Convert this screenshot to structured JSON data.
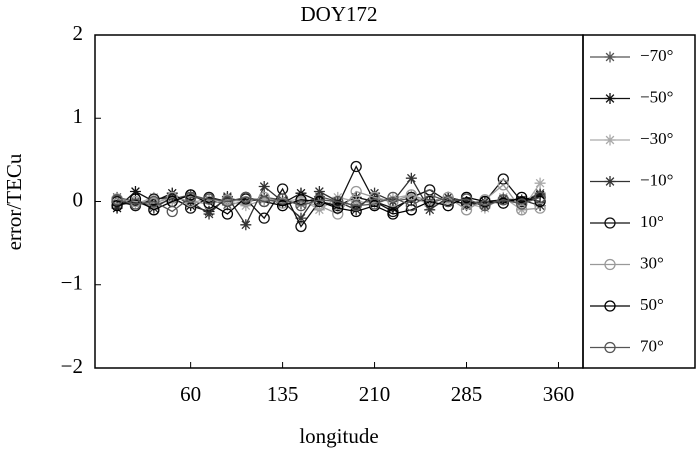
{
  "chart_data": {
    "type": "line",
    "title": "DOY172",
    "x_label": "longitude",
    "y_label": "error/TECu",
    "xlim": [
      -18,
      380
    ],
    "xticks": [
      60,
      135,
      210,
      285,
      360
    ],
    "ylim": [
      -2,
      2
    ],
    "yticks": [
      2,
      1,
      0,
      {
        "value": -1,
        "label": "−1"
      },
      {
        "value": -2,
        "label": "−2"
      }
    ],
    "x": [
      0,
      15,
      30,
      45,
      60,
      75,
      90,
      105,
      120,
      135,
      150,
      165,
      180,
      195,
      210,
      225,
      240,
      255,
      270,
      285,
      300,
      315,
      330,
      345
    ],
    "series": [
      {
        "name": "−70°",
        "color": "#555555",
        "marker": "star",
        "values": [
          0.05,
          0.0,
          -0.05,
          0.03,
          0.08,
          0.02,
          -0.04,
          0.0,
          0.05,
          0.02,
          -0.03,
          0.06,
          0.0,
          -0.05,
          0.03,
          0.0,
          0.04,
          -0.02,
          0.05,
          0.0,
          -0.04,
          0.02,
          0.0,
          0.1
        ]
      },
      {
        "name": "−50°",
        "color": "#111111",
        "marker": "star",
        "values": [
          -0.08,
          0.12,
          0.0,
          0.1,
          -0.05,
          -0.12,
          0.04,
          0.0,
          0.03,
          -0.02,
          0.1,
          0.0,
          -0.05,
          0.05,
          0.0,
          -0.08,
          0.03,
          0.0,
          0.05,
          -0.05,
          0.0,
          0.02,
          0.0,
          0.08
        ]
      },
      {
        "name": "−30°",
        "color": "#aaaaaa",
        "marker": "star",
        "values": [
          0.0,
          -0.03,
          0.05,
          0.0,
          -0.02,
          0.04,
          0.0,
          -0.05,
          0.02,
          0.0,
          0.03,
          -0.1,
          0.05,
          0.0,
          -0.02,
          0.04,
          0.08,
          -0.05,
          0.0,
          -0.02,
          -0.08,
          0.05,
          -0.1,
          0.22
        ]
      },
      {
        "name": "−10°",
        "color": "#333333",
        "marker": "star",
        "values": [
          -0.05,
          0.0,
          -0.08,
          0.05,
          0.0,
          -0.15,
          0.06,
          -0.28,
          0.18,
          0.0,
          -0.2,
          0.12,
          0.0,
          -0.1,
          0.1,
          0.0,
          0.28,
          -0.1,
          0.05,
          0.0,
          -0.05,
          0.03,
          0.02,
          -0.05
        ]
      },
      {
        "name": "10°",
        "color": "#111111",
        "marker": "circle",
        "values": [
          0.0,
          -0.05,
          0.03,
          0.05,
          -0.08,
          0.05,
          0.0,
          0.03,
          -0.2,
          0.15,
          -0.3,
          0.0,
          -0.05,
          0.42,
          0.0,
          -0.12,
          0.05,
          0.14,
          0.0,
          -0.02,
          0.0,
          0.27,
          0.0,
          0.05
        ]
      },
      {
        "name": "30°",
        "color": "#999999",
        "marker": "circle",
        "values": [
          0.03,
          0.0,
          -0.02,
          0.05,
          0.0,
          -0.03,
          0.02,
          0.0,
          0.05,
          -0.02,
          0.0,
          -0.05,
          -0.15,
          0.12,
          0.05,
          0.0,
          0.08,
          0.0,
          0.05,
          -0.1,
          0.02,
          0.2,
          -0.1,
          -0.08
        ]
      },
      {
        "name": "50°",
        "color": "#000000",
        "marker": "circle",
        "values": [
          -0.05,
          0.03,
          -0.1,
          0.0,
          0.08,
          -0.02,
          -0.15,
          0.05,
          0.0,
          -0.05,
          0.02,
          0.0,
          -0.08,
          -0.12,
          -0.05,
          -0.15,
          -0.1,
          0.0,
          -0.05,
          0.05,
          0.0,
          -0.02,
          0.05,
          0.0
        ]
      },
      {
        "name": "70°",
        "color": "#555555",
        "marker": "circle",
        "values": [
          0.02,
          -0.03,
          0.0,
          -0.12,
          0.05,
          0.03,
          0.0,
          0.05,
          0.0,
          0.03,
          -0.05,
          0.02,
          0.0,
          -0.05,
          -0.03,
          0.05,
          -0.05,
          0.08,
          0.0,
          0.03,
          -0.05,
          0.02,
          -0.03,
          0.05
        ]
      }
    ]
  }
}
